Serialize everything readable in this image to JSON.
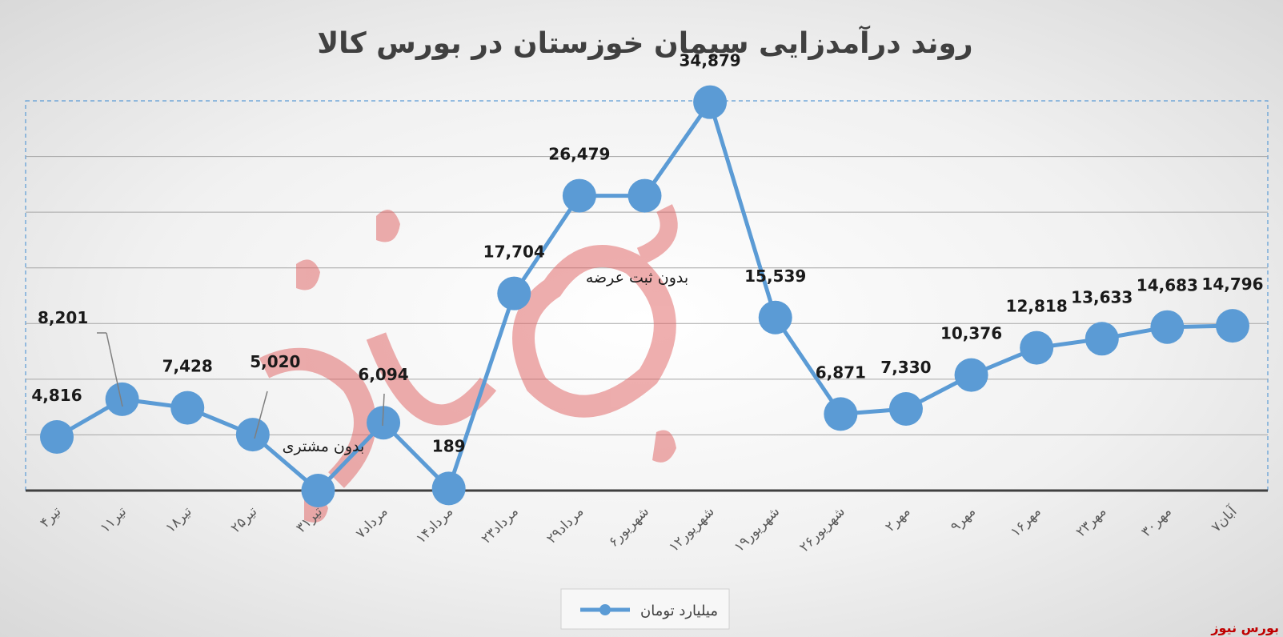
{
  "chart_data": {
    "type": "line",
    "title": "روند درآمدزایی سیمان خوزستان در بورس کالا",
    "categories": [
      "۴تیر",
      "۱۱تیر",
      "۱۸تیر",
      "۲۵تیر",
      "۳۱تیر",
      "۷مرداد",
      "۱۴مرداد",
      "۲۳مرداد",
      "۲۹مرداد",
      "۶شهریور",
      "۱۲شهریور",
      "۱۹شهریور",
      "۲۶شهریور",
      "۲مهر",
      "۹مهر",
      "۱۶مهر",
      "۲۳مهر",
      "۳۰مهر",
      "۷آبان"
    ],
    "series": [
      {
        "name": "میلیارد تومان",
        "values": [
          4816,
          8201,
          7428,
          5020,
          0,
          6094,
          189,
          17704,
          26479,
          26479,
          34879,
          15539,
          6871,
          7330,
          10376,
          12818,
          13633,
          14683,
          14796
        ],
        "labels": [
          "4,816",
          "8,201",
          "7,428",
          "5,020",
          "",
          "6,094",
          "189",
          "17,704",
          "26,479",
          "",
          "34,879",
          "15,539",
          "6,871",
          "7,330",
          "10,376",
          "12,818",
          "13,633",
          "14,683",
          "14,796"
        ]
      }
    ],
    "annotations": [
      {
        "text": "بدون مشتری",
        "category": "۳۱تیر"
      },
      {
        "text": "بدون ثبت عرضه",
        "category": "۶شهریور"
      }
    ],
    "ylim": [
      0,
      35000
    ],
    "grid": true,
    "legend": "bottom",
    "color": "#5b9bd5",
    "watermark": "بورس نیوز"
  }
}
